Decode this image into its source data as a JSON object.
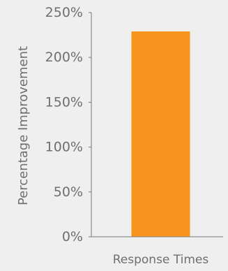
{
  "chart_data": {
    "type": "bar",
    "title": "",
    "xlabel": "",
    "ylabel": "Percentage Improvement",
    "categories": [
      "Response Times"
    ],
    "values": [
      229
    ],
    "ylim": [
      0,
      250
    ],
    "yticks": [
      0,
      50,
      100,
      150,
      200,
      250
    ],
    "ytick_labels": [
      "0%",
      "50%",
      "100%",
      "150%",
      "200%",
      "250%"
    ],
    "grid": false,
    "legend": "none",
    "colors": {
      "background": "#efefef",
      "bar": "#f7941d",
      "axis": "#7a7a7a",
      "text": "#6f6f6f"
    }
  }
}
